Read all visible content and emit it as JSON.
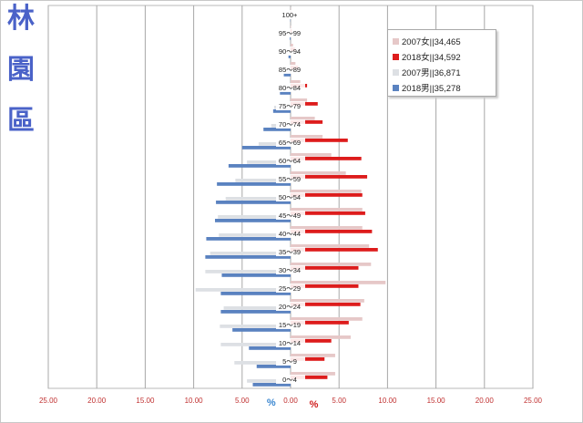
{
  "district": {
    "chars": [
      "林",
      "園",
      "區"
    ],
    "color": "#4a62c8"
  },
  "chart_data": {
    "type": "bar",
    "orientation": "horizontal",
    "layout": "population-pyramid",
    "categories": [
      "0～4",
      "5～9",
      "10～14",
      "15～19",
      "20～24",
      "25～29",
      "30～34",
      "35～39",
      "40～44",
      "45～49",
      "50～54",
      "55～59",
      "60～64",
      "65～69",
      "70～74",
      "75～79",
      "80～84",
      "85～89",
      "90～94",
      "95～99",
      "100+"
    ],
    "series": [
      {
        "name": "2007女||34,465",
        "side": "right",
        "color": "#e6c8c8",
        "values": [
          4.6,
          4.6,
          6.2,
          7.4,
          7.6,
          9.8,
          8.3,
          8.1,
          7.4,
          7.4,
          7.3,
          5.7,
          4.2,
          3.3,
          2.5,
          1.7,
          1.0,
          0.5,
          0.25,
          0.05,
          0.02
        ]
      },
      {
        "name": "2018女||34,592",
        "side": "right",
        "color": "#dd1c1c",
        "values": [
          3.8,
          3.5,
          4.2,
          6.0,
          7.2,
          7.0,
          7.0,
          9.0,
          8.4,
          7.7,
          7.4,
          7.9,
          7.3,
          5.9,
          3.3,
          2.8,
          1.7,
          0.8,
          0.5,
          0.12,
          0.03
        ]
      },
      {
        "name": "2007男||36,871",
        "side": "left",
        "color": "#dde0e4",
        "values": [
          4.5,
          5.8,
          7.2,
          7.3,
          6.9,
          9.8,
          8.8,
          8.3,
          7.4,
          7.5,
          6.7,
          5.7,
          4.5,
          3.3,
          2.0,
          1.7,
          0.8,
          0.4,
          0.12,
          0.03,
          0.01
        ]
      },
      {
        "name": "2018男||35,278",
        "side": "left",
        "color": "#5a82c0",
        "values": [
          3.9,
          3.5,
          4.3,
          6.0,
          7.2,
          7.2,
          7.1,
          8.8,
          8.7,
          7.8,
          7.7,
          7.6,
          6.4,
          5.0,
          2.8,
          1.8,
          1.1,
          0.7,
          0.22,
          0.08,
          0.03
        ]
      }
    ],
    "xlim": [
      -25,
      25
    ],
    "x_ticks": [
      "25.00",
      "20.00",
      "15.00",
      "10.00",
      "5.00",
      "0.00",
      "5.00",
      "10.00",
      "15.00",
      "20.00",
      "25.00"
    ],
    "x_tick_color": "#c03030",
    "unit_left": "%",
    "unit_left_color": "#3a86d0",
    "unit_right": "%",
    "unit_right_color": "#d02020",
    "grid": true,
    "legend_position": "top-right"
  }
}
